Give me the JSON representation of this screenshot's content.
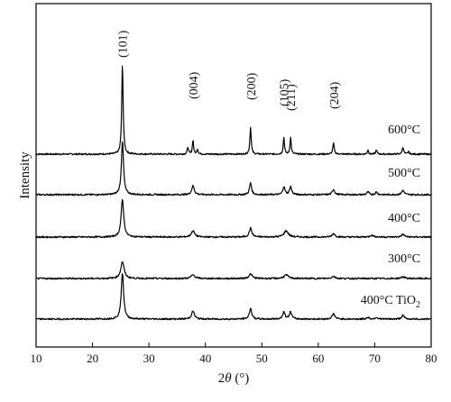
{
  "chart_data": {
    "type": "line",
    "xlabel_prefix": "2",
    "xlabel_symbol": "θ",
    "xlabel_unit": " (°)",
    "ylabel": "Intensity",
    "xlim": [
      10,
      80
    ],
    "x_ticks": [
      10,
      20,
      30,
      40,
      50,
      60,
      70,
      80
    ],
    "y_ticks_shown": false,
    "grid": false,
    "peak_labels": [
      {
        "text": "(101)",
        "x": 25.3
      },
      {
        "text": "(004)",
        "x": 37.8
      },
      {
        "text": "(200)",
        "x": 48.0
      },
      {
        "text": "(105)",
        "x": 53.9
      },
      {
        "text": "(211)",
        "x": 55.1
      },
      {
        "text": "(204)",
        "x": 62.7
      }
    ],
    "series": [
      {
        "name": "600°C",
        "peaks": [
          [
            25.3,
            1.0,
            0.3
          ],
          [
            36.9,
            0.08,
            0.25
          ],
          [
            37.8,
            0.16,
            0.25
          ],
          [
            38.6,
            0.06,
            0.25
          ],
          [
            48.0,
            0.3,
            0.28
          ],
          [
            53.9,
            0.19,
            0.25
          ],
          [
            55.1,
            0.19,
            0.25
          ],
          [
            62.7,
            0.12,
            0.3
          ],
          [
            68.8,
            0.05,
            0.25
          ],
          [
            70.3,
            0.05,
            0.25
          ],
          [
            75.0,
            0.08,
            0.3
          ],
          [
            76.0,
            0.03,
            0.25
          ]
        ]
      },
      {
        "name": "500°C",
        "peaks": [
          [
            25.3,
            0.6,
            0.45
          ],
          [
            37.8,
            0.1,
            0.55
          ],
          [
            48.0,
            0.13,
            0.45
          ],
          [
            53.9,
            0.09,
            0.45
          ],
          [
            55.1,
            0.09,
            0.45
          ],
          [
            62.7,
            0.06,
            0.5
          ],
          [
            68.8,
            0.03,
            0.45
          ],
          [
            70.3,
            0.03,
            0.45
          ],
          [
            75.0,
            0.05,
            0.5
          ]
        ]
      },
      {
        "name": "400°C",
        "peaks": [
          [
            25.3,
            0.42,
            0.55
          ],
          [
            37.8,
            0.07,
            0.7
          ],
          [
            48.0,
            0.1,
            0.55
          ],
          [
            54.3,
            0.07,
            0.9
          ],
          [
            62.7,
            0.04,
            0.6
          ],
          [
            69.5,
            0.02,
            0.8
          ],
          [
            75.0,
            0.03,
            0.6
          ]
        ]
      },
      {
        "name": "300°C",
        "peaks": [
          [
            25.3,
            0.19,
            0.7
          ],
          [
            37.8,
            0.04,
            0.8
          ],
          [
            48.0,
            0.05,
            0.7
          ],
          [
            54.3,
            0.04,
            0.9
          ],
          [
            62.7,
            0.025,
            0.7
          ],
          [
            75.0,
            0.02,
            0.7
          ]
        ]
      },
      {
        "name": "400°C TiO",
        "name_subscript": "2",
        "peaks": [
          [
            25.3,
            0.52,
            0.5
          ],
          [
            37.8,
            0.09,
            0.6
          ],
          [
            48.0,
            0.12,
            0.5
          ],
          [
            53.9,
            0.08,
            0.5
          ],
          [
            55.1,
            0.08,
            0.5
          ],
          [
            62.7,
            0.06,
            0.55
          ],
          [
            68.8,
            0.02,
            0.5
          ],
          [
            70.3,
            0.02,
            0.5
          ],
          [
            75.0,
            0.04,
            0.55
          ]
        ]
      }
    ]
  }
}
